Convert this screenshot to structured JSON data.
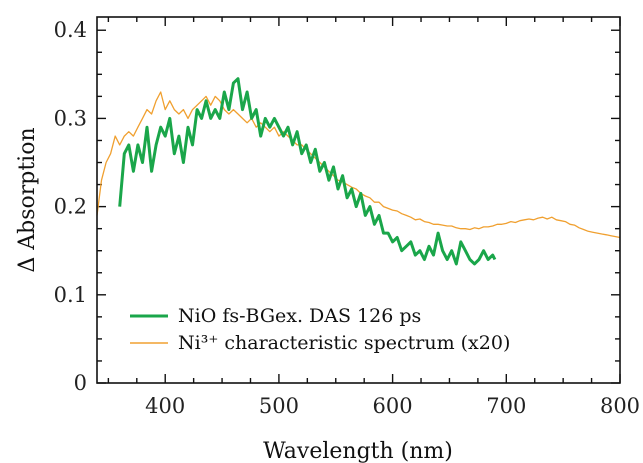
{
  "chart_data": {
    "type": "line",
    "title": "",
    "xlabel": "Wavelength (nm)",
    "ylabel": "Δ Absorption",
    "xlim": [
      340,
      800
    ],
    "ylim": [
      0,
      0.415
    ],
    "x_ticks": [
      "400",
      "500",
      "600",
      "700",
      "800"
    ],
    "y_ticks": [
      "0",
      "0.1",
      "0.2",
      "0.3",
      "0.4"
    ],
    "legend_position": "bottom-left",
    "series": [
      {
        "name": "NiO fs-BGex. DAS 126 ps",
        "color": "#1aa64a",
        "x": [
          360,
          364,
          368,
          372,
          376,
          380,
          384,
          388,
          392,
          396,
          400,
          404,
          408,
          412,
          416,
          420,
          424,
          428,
          432,
          436,
          440,
          444,
          448,
          452,
          456,
          460,
          464,
          468,
          472,
          476,
          480,
          484,
          488,
          492,
          496,
          500,
          504,
          508,
          512,
          516,
          520,
          524,
          528,
          532,
          536,
          540,
          544,
          548,
          552,
          556,
          560,
          564,
          568,
          572,
          576,
          580,
          584,
          588,
          592,
          596,
          600,
          604,
          608,
          612,
          616,
          620,
          624,
          628,
          632,
          636,
          640,
          644,
          648,
          652,
          656,
          660,
          664,
          668,
          672,
          676,
          680,
          684,
          688,
          690
        ],
        "y": [
          0.2,
          0.26,
          0.27,
          0.24,
          0.27,
          0.25,
          0.29,
          0.24,
          0.27,
          0.29,
          0.28,
          0.3,
          0.26,
          0.28,
          0.25,
          0.29,
          0.27,
          0.31,
          0.3,
          0.32,
          0.3,
          0.31,
          0.3,
          0.33,
          0.31,
          0.34,
          0.345,
          0.31,
          0.33,
          0.3,
          0.31,
          0.28,
          0.3,
          0.29,
          0.3,
          0.29,
          0.28,
          0.29,
          0.27,
          0.285,
          0.26,
          0.27,
          0.25,
          0.265,
          0.24,
          0.25,
          0.23,
          0.245,
          0.22,
          0.235,
          0.21,
          0.22,
          0.2,
          0.215,
          0.19,
          0.2,
          0.18,
          0.19,
          0.17,
          0.17,
          0.16,
          0.165,
          0.15,
          0.155,
          0.16,
          0.145,
          0.15,
          0.14,
          0.155,
          0.145,
          0.17,
          0.15,
          0.14,
          0.15,
          0.135,
          0.16,
          0.15,
          0.14,
          0.135,
          0.14,
          0.15,
          0.14,
          0.145,
          0.14
        ]
      },
      {
        "name": "Ni³⁺ characteristic spectrum (x20)",
        "color": "#f0a030",
        "x": [
          340,
          344,
          348,
          352,
          356,
          360,
          364,
          368,
          372,
          376,
          380,
          384,
          388,
          392,
          396,
          400,
          404,
          408,
          412,
          416,
          420,
          424,
          428,
          432,
          436,
          440,
          444,
          448,
          452,
          456,
          460,
          464,
          468,
          472,
          476,
          480,
          484,
          488,
          492,
          496,
          500,
          504,
          508,
          512,
          516,
          520,
          524,
          528,
          532,
          536,
          540,
          544,
          548,
          552,
          556,
          560,
          564,
          568,
          572,
          576,
          580,
          584,
          588,
          592,
          596,
          600,
          604,
          608,
          612,
          616,
          620,
          624,
          628,
          632,
          636,
          640,
          644,
          648,
          652,
          656,
          660,
          664,
          668,
          672,
          676,
          680,
          684,
          688,
          692,
          696,
          700,
          704,
          708,
          712,
          716,
          720,
          724,
          728,
          732,
          736,
          740,
          744,
          748,
          752,
          756,
          760,
          764,
          768,
          772,
          776,
          780,
          784,
          788,
          792,
          796,
          800
        ],
        "y": [
          0.19,
          0.23,
          0.25,
          0.26,
          0.28,
          0.27,
          0.28,
          0.285,
          0.28,
          0.29,
          0.3,
          0.31,
          0.305,
          0.32,
          0.33,
          0.31,
          0.32,
          0.31,
          0.305,
          0.31,
          0.3,
          0.31,
          0.315,
          0.32,
          0.325,
          0.315,
          0.325,
          0.32,
          0.31,
          0.305,
          0.31,
          0.305,
          0.3,
          0.295,
          0.3,
          0.29,
          0.295,
          0.29,
          0.285,
          0.29,
          0.28,
          0.285,
          0.28,
          0.275,
          0.27,
          0.27,
          0.265,
          0.26,
          0.255,
          0.25,
          0.245,
          0.24,
          0.235,
          0.23,
          0.228,
          0.225,
          0.222,
          0.22,
          0.215,
          0.212,
          0.21,
          0.205,
          0.205,
          0.2,
          0.198,
          0.196,
          0.195,
          0.192,
          0.19,
          0.188,
          0.185,
          0.186,
          0.183,
          0.182,
          0.18,
          0.18,
          0.179,
          0.178,
          0.178,
          0.176,
          0.175,
          0.175,
          0.174,
          0.176,
          0.175,
          0.177,
          0.177,
          0.178,
          0.18,
          0.18,
          0.181,
          0.183,
          0.182,
          0.184,
          0.185,
          0.186,
          0.185,
          0.187,
          0.188,
          0.186,
          0.188,
          0.185,
          0.184,
          0.183,
          0.18,
          0.179,
          0.176,
          0.174,
          0.172,
          0.171,
          0.17,
          0.169,
          0.168,
          0.167,
          0.166,
          0.165
        ]
      }
    ]
  }
}
